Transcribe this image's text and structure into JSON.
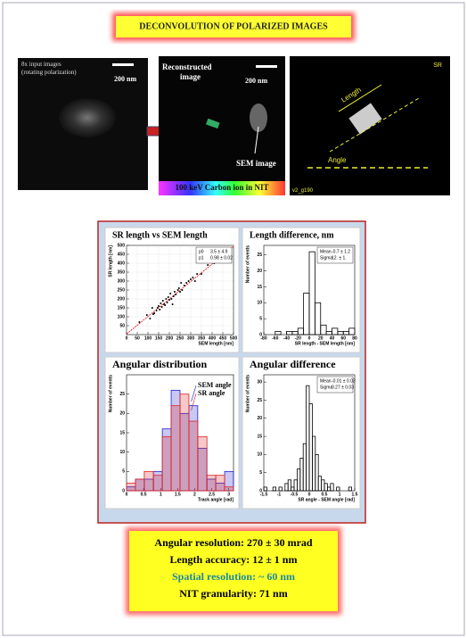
{
  "header": {
    "title": "DECONVOLUTION OF  POLARIZED IMAGES"
  },
  "images": {
    "input_label_1": "8x input images",
    "input_label_2": "(rotating polarization)",
    "scale_1": "200 nm",
    "reco_label_1": "Reconstructed",
    "reco_label_2": "image",
    "scale_2": "200 nm",
    "sem_label": "SEM image",
    "caption": "100 keV Carbon ion in NIT",
    "sr_label": "SR",
    "length_label": "Length",
    "angle_label": "Angle",
    "file_label": "v2_g190"
  },
  "chart_data": [
    {
      "type": "scatter",
      "title": "SR length vs SEM length",
      "xlabel": "SEM length [nm]",
      "ylabel": "SR length [nm]",
      "xlim": [
        0,
        500
      ],
      "ylim": [
        0,
        500
      ],
      "xticks": [
        0,
        50,
        100,
        150,
        200,
        250,
        300,
        350,
        400,
        450,
        500
      ],
      "yticks": [
        50,
        100,
        150,
        200,
        250,
        300,
        350,
        400,
        450,
        500
      ],
      "x": [
        60,
        95,
        110,
        120,
        125,
        130,
        140,
        145,
        150,
        155,
        160,
        165,
        170,
        175,
        180,
        185,
        190,
        195,
        200,
        205,
        210,
        215,
        220,
        225,
        230,
        240,
        245,
        250,
        255,
        260,
        270,
        280,
        290,
        300,
        310,
        320,
        330,
        350,
        380,
        410
      ],
      "y": [
        70,
        110,
        90,
        150,
        115,
        120,
        135,
        150,
        160,
        140,
        175,
        155,
        190,
        170,
        165,
        200,
        180,
        210,
        195,
        230,
        200,
        170,
        215,
        240,
        225,
        250,
        260,
        240,
        290,
        250,
        275,
        290,
        300,
        310,
        320,
        300,
        340,
        340,
        390,
        400
      ],
      "color": "#000000",
      "fit": {
        "intercept": 3.5,
        "slope": 0.98,
        "color": "#dd0000"
      },
      "stats": [
        {
          "label": "p0",
          "value": "3.5 ± 4.9"
        },
        {
          "label": "p1",
          "value": "0.98 ± 0.02"
        }
      ]
    },
    {
      "type": "histogram",
      "title": "Length difference, nm",
      "xlabel": "SR length - SEM length [nm]",
      "ylabel": "Number of events",
      "xlim": [
        -80,
        80
      ],
      "ylim": [
        0,
        28
      ],
      "xticks": [
        -80,
        -60,
        -40,
        -20,
        0,
        20,
        40,
        60,
        80
      ],
      "yticks": [
        0,
        5,
        10,
        15,
        20,
        25
      ],
      "bins": [
        -80,
        -70,
        -60,
        -50,
        -40,
        -30,
        -20,
        -10,
        0,
        10,
        20,
        30,
        40,
        50,
        60,
        70,
        80
      ],
      "series": [
        {
          "color": "#000000",
          "values": [
            0,
            0,
            1,
            0,
            1,
            1,
            2,
            13,
            26,
            10,
            3,
            1,
            2,
            1,
            1,
            2
          ]
        }
      ],
      "stats": [
        {
          "label": "Mean",
          "value": "-0.7 ± 1.2"
        },
        {
          "label": "Sigma",
          "value": "12. ± 1."
        }
      ]
    },
    {
      "type": "histogram",
      "title": "Angular distribution",
      "xlabel": "Track angle [rad]",
      "ylabel": "Number of events",
      "xlim": [
        0,
        3.14
      ],
      "ylim": [
        0,
        30
      ],
      "xticks": [
        0,
        0.5,
        1,
        1.5,
        2,
        2.5,
        3
      ],
      "yticks": [
        0,
        5,
        10,
        15,
        20,
        25
      ],
      "bins": [
        0,
        0.26,
        0.52,
        0.79,
        1.05,
        1.31,
        1.57,
        1.83,
        2.09,
        2.36,
        2.62,
        2.88,
        3.14
      ],
      "series": [
        {
          "name": "SEM angle",
          "color": "#2222cc",
          "values": [
            1,
            3,
            3,
            5,
            16,
            26,
            20,
            22,
            11,
            3,
            2,
            5
          ]
        },
        {
          "name": "SR angle",
          "color": "#dd2222",
          "values": [
            2,
            3,
            5,
            4,
            14,
            22,
            25,
            18,
            14,
            4,
            4,
            1
          ]
        }
      ]
    },
    {
      "type": "histogram",
      "title": "Angular difference",
      "xlabel": "SR angle - SEM angle [rad]",
      "ylabel": "Number of events",
      "xlim": [
        -1.5,
        1.5
      ],
      "ylim": [
        0,
        32
      ],
      "xticks": [
        -1.5,
        -1,
        -0.5,
        0,
        0.5,
        1,
        1.5
      ],
      "yticks": [
        0,
        5,
        10,
        15,
        20,
        25,
        30
      ],
      "bins": [
        -1.5,
        -1.4,
        -1.3,
        -1.2,
        -1.1,
        -1,
        -0.9,
        -0.8,
        -0.7,
        -0.6,
        -0.5,
        -0.4,
        -0.3,
        -0.2,
        -0.1,
        0,
        0.1,
        0.2,
        0.3,
        0.4,
        0.5,
        0.6,
        0.7,
        0.8,
        0.9,
        1,
        1.1,
        1.2,
        1.3,
        1.4,
        1.5
      ],
      "series": [
        {
          "color": "#000000",
          "values": [
            1,
            0,
            0,
            1,
            0,
            1,
            0,
            2,
            3,
            1,
            3,
            6,
            9,
            13,
            29,
            24,
            15,
            10,
            4,
            3,
            2,
            1,
            2,
            0,
            1,
            0,
            0,
            0,
            1,
            0
          ]
        }
      ],
      "stats": [
        {
          "label": "Mean",
          "value": "-0.01 ± 0.03"
        },
        {
          "label": "Sigma",
          "value": "0.27 ± 0.03"
        }
      ]
    }
  ],
  "summary": {
    "lines": [
      "Angular resolution: 270 ± 30 mrad",
      "Length accuracy: 12 ± 1 nm",
      "Spatial resolution: ~ 60 nm",
      "NIT granularity: 71 nm"
    ]
  }
}
